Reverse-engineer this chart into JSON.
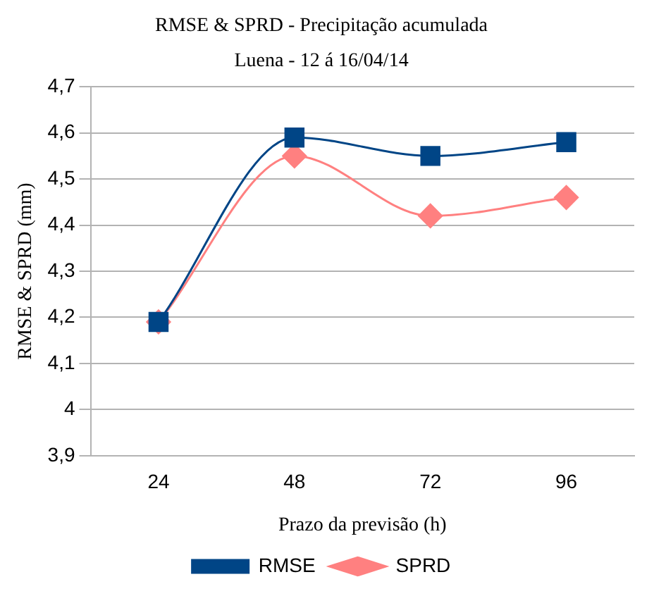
{
  "chart_data": {
    "type": "line",
    "title": "RMSE & SPRD - Precipitação acumulada",
    "subtitle": "Luena - 12 á 16/04/14",
    "xlabel": "Prazo da previsão (h)",
    "ylabel": "RMSE & SPRD (mm)",
    "categories": [
      "24",
      "48",
      "72",
      "96"
    ],
    "series": [
      {
        "name": "RMSE",
        "color": "#004586",
        "marker": "square",
        "values": [
          4.19,
          4.59,
          4.55,
          4.58
        ]
      },
      {
        "name": "SPRD",
        "color": "#ff8080",
        "marker": "diamond",
        "values": [
          4.19,
          4.55,
          4.42,
          4.46
        ]
      }
    ],
    "ylim": [
      3.9,
      4.7
    ],
    "yticks": [
      {
        "value": 3.9,
        "label": "3,9"
      },
      4,
      {
        "value": 4.1,
        "label": "4,1"
      },
      {
        "value": 4.2,
        "label": "4,2"
      },
      {
        "value": 4.3,
        "label": "4,3"
      },
      {
        "value": 4.4,
        "label": "4,4"
      },
      {
        "value": 4.5,
        "label": "4,5"
      },
      {
        "value": 4.6,
        "label": "4,6"
      },
      {
        "value": 4.7,
        "label": "4,7"
      }
    ],
    "grid": "y",
    "legend": "bottom"
  }
}
